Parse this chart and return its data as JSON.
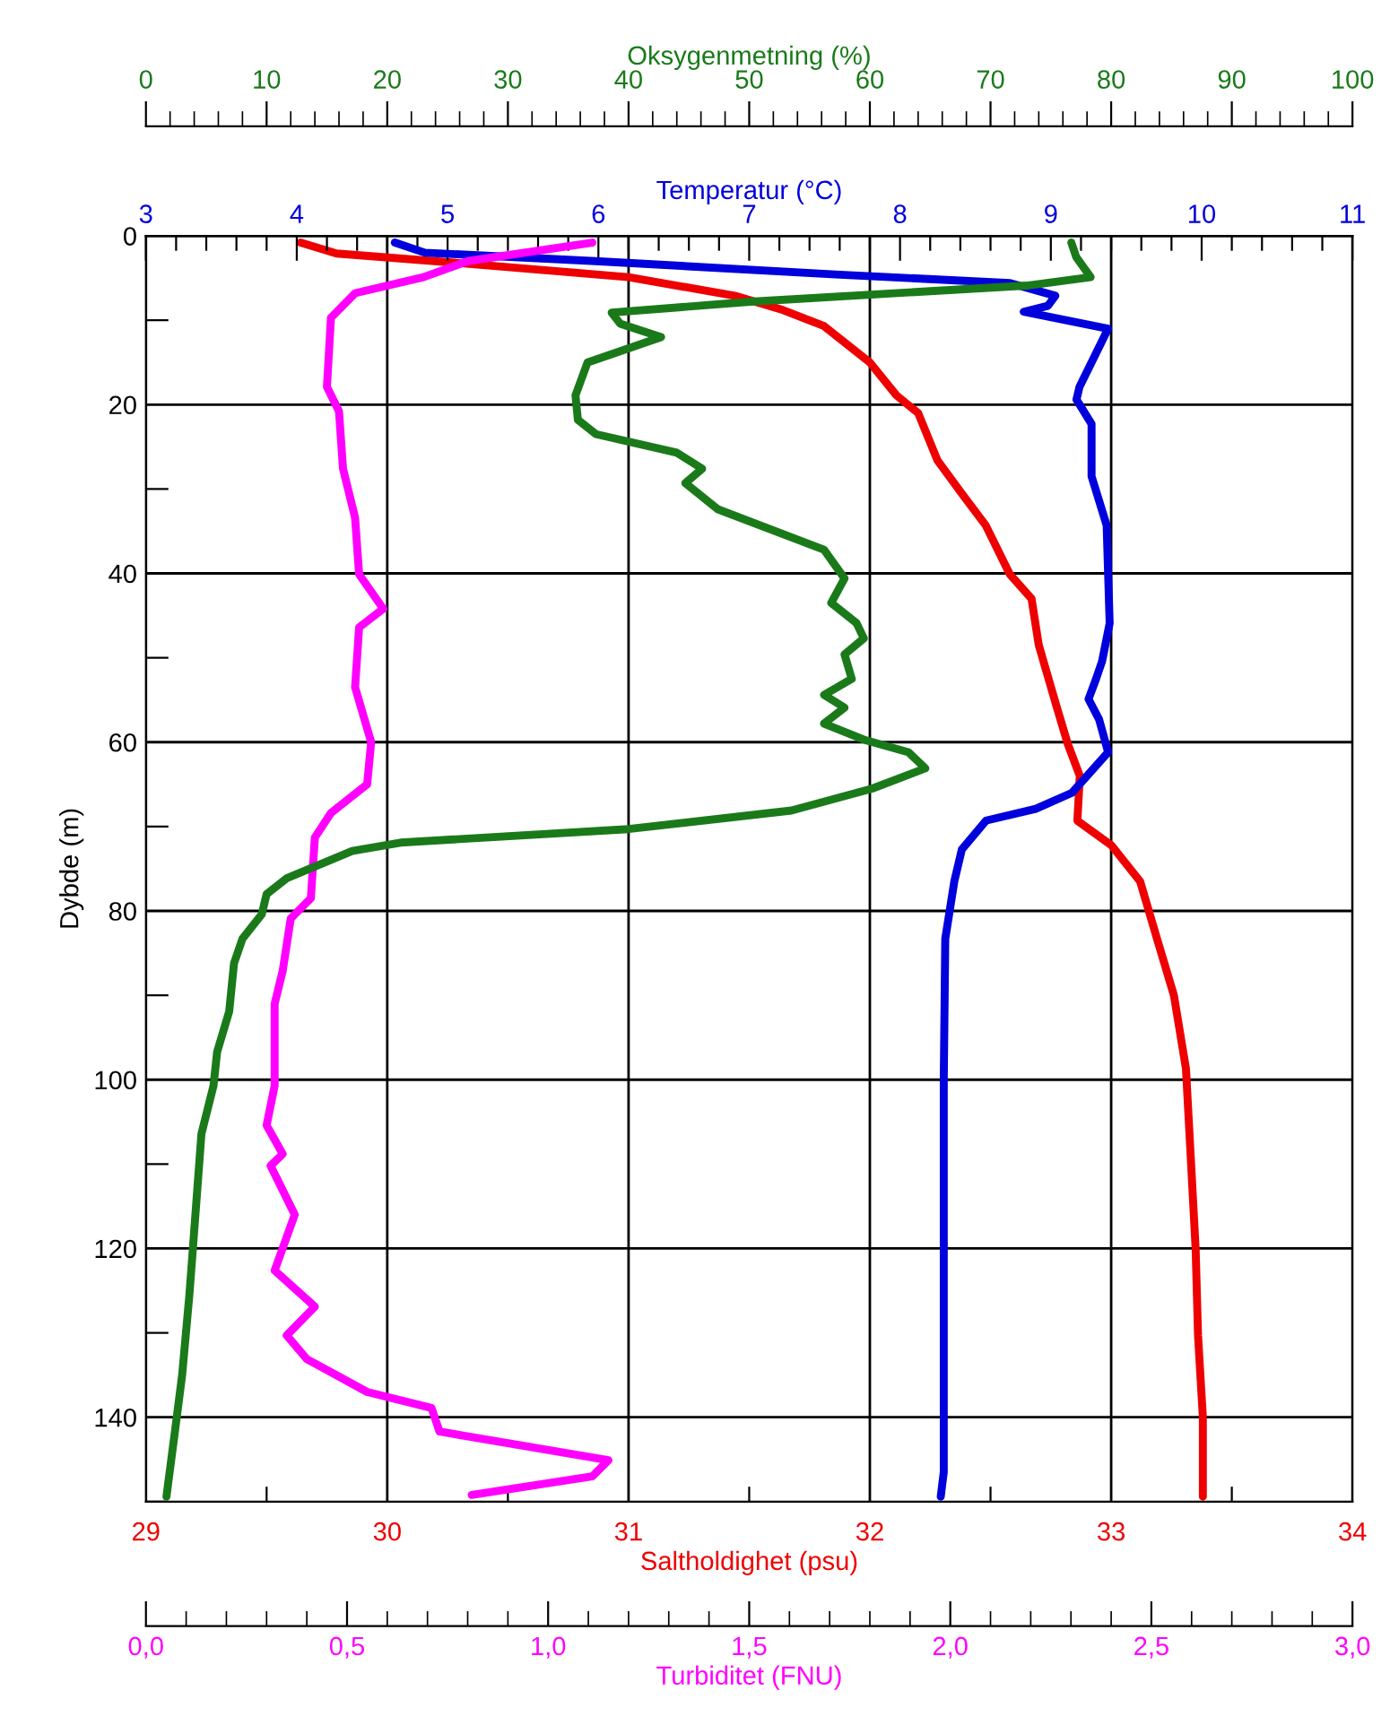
{
  "chart_data": [
    {
      "type": "line",
      "ylabel": "Dybde (m)",
      "xlabel": "Saltholdighet (psu)",
      "x2label": "Temperatur (°C)",
      "ylim": [
        150,
        0
      ],
      "yticks": [
        0,
        {
          "value": 10,
          "label": null
        },
        20,
        {
          "value": 30,
          "label": null
        },
        40,
        {
          "value": 50,
          "label": null
        },
        60,
        {
          "value": 70,
          "label": null
        },
        80,
        {
          "value": 90,
          "label": null
        },
        100,
        {
          "value": 110,
          "label": null
        },
        120,
        {
          "value": 130,
          "label": null
        },
        140,
        {
          "value": 150,
          "label": null
        }
      ],
      "xlim": [
        29,
        34
      ],
      "xticks": [
        29,
        {
          "value": 29.5,
          "label": null
        },
        30,
        {
          "value": 30.5,
          "label": null
        },
        31,
        {
          "value": 31.5,
          "label": null
        },
        32,
        {
          "value": 32.5,
          "label": null
        },
        33,
        {
          "value": 33.5,
          "label": null
        },
        34
      ],
      "x2lim": [
        3,
        11
      ],
      "x2ticks": [
        3,
        {
          "value": 3.2,
          "label": null
        },
        {
          "value": 3.4,
          "label": null
        },
        {
          "value": 3.6,
          "label": null
        },
        {
          "value": 3.8,
          "label": null
        },
        4,
        {
          "value": 4.2,
          "label": null
        },
        {
          "value": 4.4,
          "label": null
        },
        {
          "value": 4.6,
          "label": null
        },
        {
          "value": 4.8,
          "label": null
        },
        5,
        {
          "value": 5.2,
          "label": null
        },
        {
          "value": 5.4,
          "label": null
        },
        {
          "value": 5.6,
          "label": null
        },
        {
          "value": 5.8,
          "label": null
        },
        6,
        {
          "value": 6.2,
          "label": null
        },
        {
          "value": 6.4,
          "label": null
        },
        {
          "value": 6.6,
          "label": null
        },
        {
          "value": 6.8,
          "label": null
        },
        7,
        {
          "value": 7.2,
          "label": null
        },
        {
          "value": 7.4,
          "label": null
        },
        {
          "value": 7.6,
          "label": null
        },
        {
          "value": 7.8,
          "label": null
        },
        8,
        {
          "value": 8.2,
          "label": null
        },
        {
          "value": 8.4,
          "label": null
        },
        {
          "value": 8.6,
          "label": null
        },
        {
          "value": 8.8,
          "label": null
        },
        9,
        {
          "value": 9.2,
          "label": null
        },
        {
          "value": 9.4,
          "label": null
        },
        {
          "value": 9.6,
          "label": null
        },
        {
          "value": 9.8,
          "label": null
        },
        10,
        {
          "value": 10.2,
          "label": null
        },
        {
          "value": 10.4,
          "label": null
        },
        {
          "value": 10.6,
          "label": null
        },
        {
          "value": 10.8,
          "label": null
        },
        11
      ],
      "grid": true,
      "series": [
        {
          "color": "#ee0000",
          "x": [
            29.64,
            29.79,
            30.33,
            31.0,
            31.44,
            31.64,
            31.81,
            32.0,
            32.11,
            32.2,
            32.28,
            32.38,
            32.48,
            32.58,
            32.67,
            32.7,
            32.77,
            32.82,
            32.87,
            32.86,
            33.0,
            33.12,
            33.19,
            33.26,
            33.31,
            33.33,
            33.35,
            33.36,
            33.38,
            33.38
          ],
          "values": [
            0.8,
            2.1,
            3.3,
            4.9,
            7.1,
            8.8,
            10.7,
            15.0,
            18.9,
            21.0,
            26.6,
            30.5,
            34.3,
            40.1,
            43.0,
            48.5,
            55.4,
            60.2,
            64.0,
            69.3,
            72.2,
            76.5,
            83.3,
            90.0,
            98.7,
            109.3,
            120.0,
            130.3,
            140.0,
            149.4
          ]
        },
        {
          "axis": "x2",
          "color": "#0000dd",
          "x": [
            4.65,
            4.85,
            5.98,
            7.6,
            8.73,
            9.03,
            8.98,
            8.82,
            9.38,
            9.19,
            9.17,
            9.27,
            9.27,
            9.37,
            9.38,
            9.39,
            9.34,
            9.3,
            9.25,
            9.32,
            9.38,
            9.14,
            8.9,
            8.57,
            8.41,
            8.36,
            8.3,
            8.29,
            8.29,
            8.27
          ],
          "values": [
            0.8,
            2.0,
            3.0,
            4.6,
            5.6,
            7.1,
            8.3,
            9.0,
            11.0,
            17.9,
            19.4,
            22.3,
            28.5,
            34.3,
            40.1,
            45.9,
            50.4,
            52.5,
            54.9,
            57.3,
            61.2,
            66.0,
            67.9,
            69.3,
            72.7,
            76.5,
            83.3,
            100.0,
            146.5,
            149.4
          ]
        }
      ]
    },
    {
      "type": "line",
      "xlabel": "Turbiditet (FNU)",
      "x2label": "Oksygenmetning (%)",
      "tick_labels": "x",
      "ylim": [
        150,
        0
      ],
      "xlim": [
        0,
        3
      ],
      "xticks": [
        {
          "value": 0,
          "label": "0,0"
        },
        {
          "value": 0.5,
          "label": "0,5"
        },
        {
          "value": 1.0,
          "label": "1,0"
        },
        {
          "value": 1.5,
          "label": "1,5"
        },
        {
          "value": 2.0,
          "label": "2,0"
        },
        {
          "value": 2.5,
          "label": "2,5"
        },
        {
          "value": 3.0,
          "label": "3,0"
        }
      ],
      "x2lim": [
        0,
        100
      ],
      "x2ticks": [
        0,
        10,
        20,
        30,
        40,
        50,
        60,
        70,
        80,
        90,
        100
      ],
      "series": [
        {
          "axis": "x2",
          "color": "#1a7a1a",
          "x": [
            76.7,
            77.1,
            78.3,
            73.0,
            50.1,
            38.6,
            39.3,
            42.7,
            36.6,
            35.6,
            35.8,
            37.3,
            44.0,
            46.1,
            44.7,
            47.4,
            56.2,
            57.9,
            56.8,
            58.9,
            59.5,
            57.9,
            58.5,
            56.2,
            57.9,
            56.2,
            59.5,
            63.2,
            64.6,
            60.2,
            53.5,
            40.0,
            21.1,
            17.1,
            11.7,
            10.0,
            9.6,
            8.0,
            7.3,
            6.9,
            5.9,
            5.6,
            4.6,
            3.9,
            3.6,
            3.0,
            2.4,
            1.7
          ],
          "values": [
            0.8,
            2.5,
            4.9,
            5.9,
            7.8,
            9.1,
            10.4,
            12.0,
            15.0,
            18.9,
            21.8,
            23.5,
            25.7,
            27.6,
            29.3,
            32.4,
            37.2,
            40.6,
            43.5,
            45.9,
            47.7,
            49.6,
            52.5,
            54.4,
            55.9,
            57.8,
            59.7,
            61.2,
            63.1,
            65.5,
            68.1,
            70.3,
            71.9,
            72.9,
            76.1,
            78.0,
            80.4,
            83.3,
            86.2,
            91.9,
            96.7,
            100.7,
            106.4,
            119.8,
            125.5,
            135.0,
            141.7,
            149.4
          ]
        },
        {
          "color": "#ff00ff",
          "x": [
            1.11,
            0.8,
            0.69,
            0.52,
            0.46,
            0.45,
            0.48,
            0.49,
            0.52,
            0.53,
            0.59,
            0.53,
            0.52,
            0.56,
            0.55,
            0.46,
            0.42,
            0.41,
            0.36,
            0.34,
            0.32,
            0.32,
            0.3,
            0.34,
            0.31,
            0.37,
            0.32,
            0.42,
            0.35,
            0.4,
            0.55,
            0.71,
            0.73,
            1.15,
            1.11,
            0.81
          ],
          "values": [
            0.8,
            3.0,
            4.9,
            6.8,
            9.7,
            17.9,
            20.8,
            27.6,
            33.4,
            40.1,
            44.2,
            46.4,
            53.5,
            60.0,
            65.0,
            68.4,
            71.3,
            78.5,
            80.9,
            87.1,
            91.0,
            100.7,
            105.4,
            108.8,
            110.2,
            116.0,
            122.6,
            126.9,
            130.3,
            133.1,
            137.0,
            138.9,
            141.7,
            145.1,
            147.0,
            149.2
          ]
        }
      ]
    }
  ]
}
